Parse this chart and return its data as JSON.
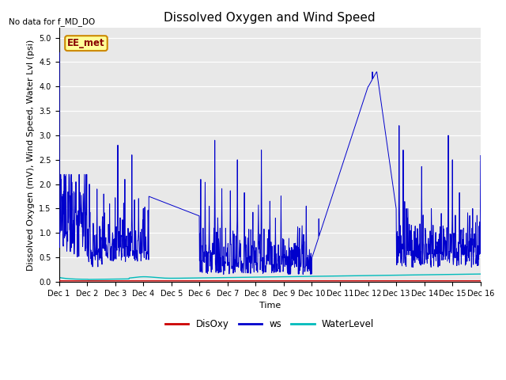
{
  "title": "Dissolved Oxygen and Wind Speed",
  "no_data_text": "No data for f_MD_DO",
  "annotation_text": "EE_met",
  "xlabel": "Time",
  "ylabel": "Dissolved Oxygen (mV), Wind Speed, Water Lvl (psi)",
  "ylim": [
    0.0,
    5.2
  ],
  "yticks": [
    0.0,
    0.5,
    1.0,
    1.5,
    2.0,
    2.5,
    3.0,
    3.5,
    4.0,
    4.5,
    5.0
  ],
  "xtick_labels": [
    "Dec 1",
    "Dec 2",
    "Dec 3",
    "Dec 4",
    "Dec 5",
    "Dec 6",
    "Dec 7",
    "Dec 8",
    "Dec 9",
    "Dec 10",
    "Dec 11",
    "Dec 12",
    "Dec 13",
    "Dec 14",
    "Dec 15",
    "Dec 16"
  ],
  "ws_color": "#0000cc",
  "disoxy_color": "#cc0000",
  "wl_color": "#00bbbb",
  "bg_color": "#e8e8e8",
  "legend_labels": [
    "DisOxy",
    "ws",
    "WaterLevel"
  ],
  "legend_colors": [
    "#cc0000",
    "#0000cc",
    "#00bbbb"
  ],
  "annotation_facecolor": "#ffff99",
  "annotation_edgecolor": "#cc8800",
  "annotation_textcolor": "#880000",
  "title_fontsize": 11,
  "axis_fontsize": 8,
  "tick_fontsize": 7
}
